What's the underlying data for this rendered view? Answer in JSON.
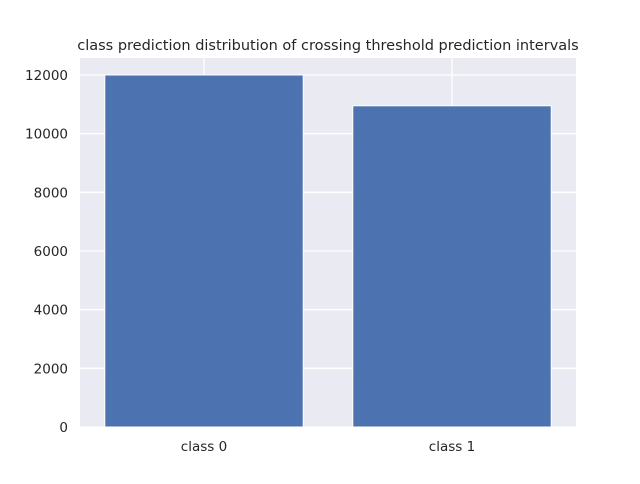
{
  "chart_data": {
    "type": "bar",
    "title": "class prediction distribution of crossing threshold prediction intervals",
    "categories": [
      "class 0",
      "class 1"
    ],
    "values": [
      12000,
      10950
    ],
    "xlabel": "",
    "ylabel": "",
    "ylim": [
      0,
      12000
    ],
    "yticks": [
      0,
      2000,
      4000,
      6000,
      8000,
      10000,
      12000
    ],
    "grid": true,
    "legend": "none",
    "colors": {
      "bar": "#4c72b0",
      "plot_background": "#eaeaf2",
      "grid": "#ffffff",
      "text": "#262626"
    }
  }
}
